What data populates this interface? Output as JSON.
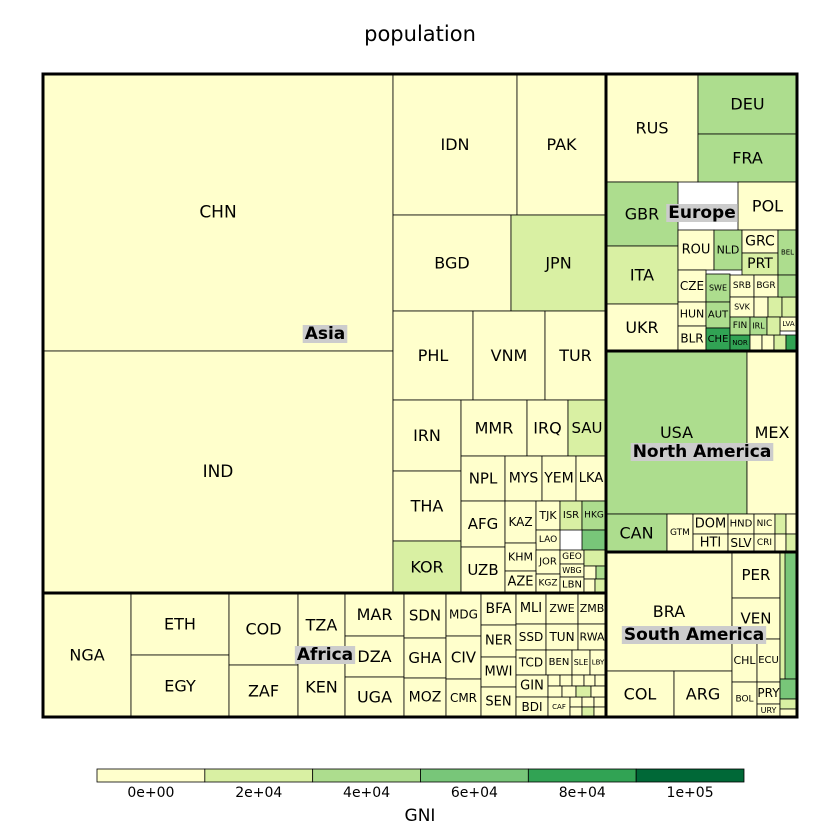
{
  "chart_data": {
    "type": "treemap",
    "title": "population",
    "size_variable": "population",
    "color_variable": "GNI",
    "legend": {
      "title": "GNI",
      "placement": "bottom",
      "tick_labels": [
        "0e+00",
        "2e+04",
        "4e+04",
        "6e+04",
        "8e+04",
        "1e+05"
      ],
      "bins": [
        0,
        20000,
        40000,
        60000,
        80000,
        100000,
        120000
      ],
      "colors": [
        "#ffffcc",
        "#d9f0a3",
        "#addd8e",
        "#78c679",
        "#31a354",
        "#006837"
      ]
    },
    "groups": [
      {
        "name": "Asia",
        "countries": [
          {
            "code": "CHN",
            "population": 1376,
            "gni": 8000
          },
          {
            "code": "IND",
            "population": 1311,
            "gni": 1600
          },
          {
            "code": "IDN",
            "population": 258,
            "gni": 3400
          },
          {
            "code": "PAK",
            "population": 189,
            "gni": 1400
          },
          {
            "code": "BGD",
            "population": 161,
            "gni": 1200
          },
          {
            "code": "JPN",
            "population": 127,
            "gni": 38000
          },
          {
            "code": "PHL",
            "population": 101,
            "gni": 3500
          },
          {
            "code": "VNM",
            "population": 93,
            "gni": 2000
          },
          {
            "code": "TUR",
            "population": 79,
            "gni": 9800
          },
          {
            "code": "IRN",
            "population": 79,
            "gni": 6500
          },
          {
            "code": "THA",
            "population": 68,
            "gni": 5700
          },
          {
            "code": "MMR",
            "population": 54,
            "gni": 1300
          },
          {
            "code": "KOR",
            "population": 50,
            "gni": 27000
          },
          {
            "code": "IRQ",
            "population": 36,
            "gni": 5500
          },
          {
            "code": "SAU",
            "population": 31,
            "gni": 23000
          },
          {
            "code": "NPL",
            "population": 29,
            "gni": 700
          },
          {
            "code": "MYS",
            "population": 30,
            "gni": 10000
          },
          {
            "code": "YEM",
            "population": 27,
            "gni": 1300
          },
          {
            "code": "LKA",
            "population": 21,
            "gni": 3800
          },
          {
            "code": "AFG",
            "population": 33,
            "gni": 600
          },
          {
            "code": "UZB",
            "population": 31,
            "gni": 2100
          },
          {
            "code": "KAZ",
            "population": 18,
            "gni": 11000
          },
          {
            "code": "TJK",
            "population": 8.5,
            "gni": 1200
          },
          {
            "code": "ISR",
            "population": 8.4,
            "gni": 35000
          },
          {
            "code": "HKG",
            "population": 7.3,
            "gni": 41000
          },
          {
            "code": "LAO",
            "population": 6.8,
            "gni": 1700
          },
          {
            "code": "KHM",
            "population": 15,
            "gni": 1100
          },
          {
            "code": "JOR",
            "population": 7.6,
            "gni": 4700
          },
          {
            "code": "GEO",
            "population": 3.7,
            "gni": 4100
          },
          {
            "code": "WBG",
            "population": 4.4,
            "gni": 3100
          },
          {
            "code": "AZE",
            "population": 9.6,
            "gni": 6500
          },
          {
            "code": "KGZ",
            "population": 6,
            "gni": 1200
          },
          {
            "code": "LBN",
            "population": 5.8,
            "gni": 8000
          }
        ]
      },
      {
        "name": "Africa",
        "countries": [
          {
            "code": "NGA",
            "population": 182,
            "gni": 2800
          },
          {
            "code": "ETH",
            "population": 99,
            "gni": 600
          },
          {
            "code": "EGY",
            "population": 92,
            "gni": 3300
          },
          {
            "code": "COD",
            "population": 77,
            "gni": 400
          },
          {
            "code": "ZAF",
            "population": 55,
            "gni": 6000
          },
          {
            "code": "TZA",
            "population": 53,
            "gni": 900
          },
          {
            "code": "KEN",
            "population": 46,
            "gni": 1300
          },
          {
            "code": "MAR",
            "population": 34,
            "gni": 3000
          },
          {
            "code": "DZA",
            "population": 40,
            "gni": 4800
          },
          {
            "code": "UGA",
            "population": 39,
            "gni": 700
          },
          {
            "code": "SDN",
            "population": 40,
            "gni": 2000
          },
          {
            "code": "GHA",
            "population": 27,
            "gni": 1500
          },
          {
            "code": "MOZ",
            "population": 28,
            "gni": 600
          },
          {
            "code": "MDG",
            "population": 24,
            "gni": 400
          },
          {
            "code": "CIV",
            "population": 22,
            "gni": 1400
          },
          {
            "code": "CMR",
            "population": 23,
            "gni": 1300
          },
          {
            "code": "BFA",
            "population": 18,
            "gni": 600
          },
          {
            "code": "NER",
            "population": 20,
            "gni": 400
          },
          {
            "code": "MWI",
            "population": 17,
            "gni": 300
          },
          {
            "code": "SEN",
            "population": 15,
            "gni": 1000
          },
          {
            "code": "MLI",
            "population": 17,
            "gni": 800
          },
          {
            "code": "ZWE",
            "population": 15,
            "gni": 900
          },
          {
            "code": "ZMB",
            "population": 16,
            "gni": 1500
          },
          {
            "code": "SSD",
            "population": 12,
            "gni": 800
          },
          {
            "code": "TUN",
            "population": 11,
            "gni": 3900
          },
          {
            "code": "RWA",
            "population": 11,
            "gni": 700
          },
          {
            "code": "TCD",
            "population": 14,
            "gni": 900
          },
          {
            "code": "BEN",
            "population": 10,
            "gni": 800
          },
          {
            "code": "SLE",
            "population": 7,
            "gni": 600
          },
          {
            "code": "LBY",
            "population": 6,
            "gni": 6000
          },
          {
            "code": "GIN",
            "population": 12,
            "gni": 500
          },
          {
            "code": "BDI",
            "population": 10,
            "gni": 300
          },
          {
            "code": "CAF",
            "population": 4.5,
            "gni": 300
          }
        ]
      },
      {
        "name": "Europe",
        "countries": [
          {
            "code": "RUS",
            "population": 144,
            "gni": 11000
          },
          {
            "code": "DEU",
            "population": 81,
            "gni": 45000
          },
          {
            "code": "FRA",
            "population": 66,
            "gni": 40000
          },
          {
            "code": "GBR",
            "population": 65,
            "gni": 43000
          },
          {
            "code": "ITA",
            "population": 61,
            "gni": 32000
          },
          {
            "code": "POL",
            "population": 38,
            "gni": 13000
          },
          {
            "code": "UKR",
            "population": 45,
            "gni": 2600
          },
          {
            "code": "ROU",
            "population": 20,
            "gni": 9500
          },
          {
            "code": "NLD",
            "population": 17,
            "gni": 48000
          },
          {
            "code": "GRC",
            "population": 11,
            "gni": 18000
          },
          {
            "code": "PRT",
            "population": 10,
            "gni": 20000
          },
          {
            "code": "BEL",
            "population": 11,
            "gni": 44000
          },
          {
            "code": "CZE",
            "population": 10.5,
            "gni": 18000
          },
          {
            "code": "SWE",
            "population": 9.8,
            "gni": 57000
          },
          {
            "code": "SRB",
            "population": 7.1,
            "gni": 5500
          },
          {
            "code": "BGR",
            "population": 7.2,
            "gni": 7500
          },
          {
            "code": "HUN",
            "population": 9.8,
            "gni": 13000
          },
          {
            "code": "AUT",
            "population": 8.6,
            "gni": 48000
          },
          {
            "code": "SVK",
            "population": 5.4,
            "gni": 17000
          },
          {
            "code": "BLR",
            "population": 9.5,
            "gni": 7000
          },
          {
            "code": "CHE",
            "population": 8.3,
            "gni": 84000
          },
          {
            "code": "NOR",
            "population": 5.2,
            "gni": 94000
          },
          {
            "code": "FIN",
            "population": 5.5,
            "gni": 47000
          },
          {
            "code": "IRL",
            "population": 4.7,
            "gni": 52000
          },
          {
            "code": "LVA",
            "population": 2,
            "gni": 15000
          }
        ]
      },
      {
        "name": "North America",
        "countries": [
          {
            "code": "USA",
            "population": 321,
            "gni": 56000
          },
          {
            "code": "MEX",
            "population": 127,
            "gni": 9700
          },
          {
            "code": "CAN",
            "population": 36,
            "gni": 47000
          },
          {
            "code": "GTM",
            "population": 16,
            "gni": 3600
          },
          {
            "code": "DOM",
            "population": 10.5,
            "gni": 6200
          },
          {
            "code": "HND",
            "population": 9,
            "gni": 2200
          },
          {
            "code": "NIC",
            "population": 6,
            "gni": 1900
          },
          {
            "code": "HTI",
            "population": 10.7,
            "gni": 800
          },
          {
            "code": "SLV",
            "population": 6.3,
            "gni": 3900
          },
          {
            "code": "CRI",
            "population": 4.8,
            "gni": 10000
          }
        ]
      },
      {
        "name": "South America",
        "countries": [
          {
            "code": "BRA",
            "population": 206,
            "gni": 9800
          },
          {
            "code": "PER",
            "population": 31,
            "gni": 6100
          },
          {
            "code": "VEN",
            "population": 31,
            "gni": 11000
          },
          {
            "code": "COL",
            "population": 48,
            "gni": 7000
          },
          {
            "code": "ARG",
            "population": 43,
            "gni": 12000
          },
          {
            "code": "CHL",
            "population": 18,
            "gni": 14000
          },
          {
            "code": "ECU",
            "population": 16,
            "gni": 6000
          },
          {
            "code": "BOL",
            "population": 11,
            "gni": 3000
          },
          {
            "code": "PRY",
            "population": 7,
            "gni": 4200
          },
          {
            "code": "URY",
            "population": 3.4,
            "gni": 15000
          }
        ]
      }
    ]
  }
}
